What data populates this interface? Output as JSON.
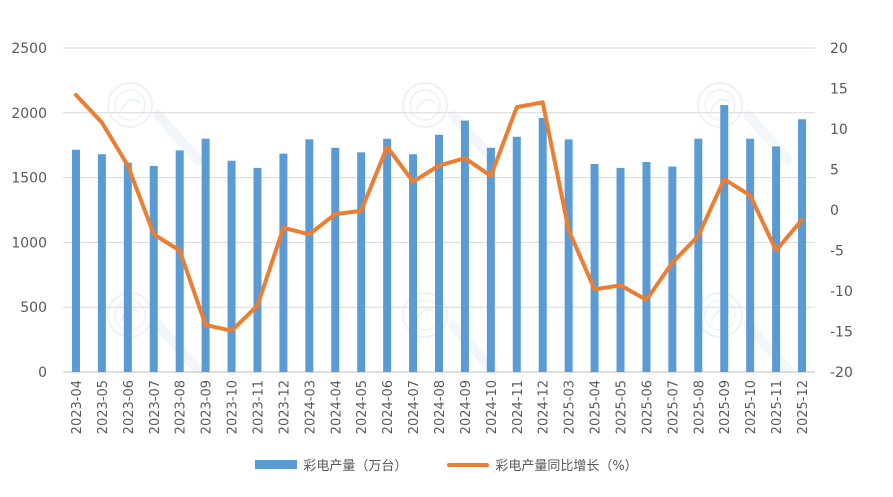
{
  "chart_data": {
    "type": "bar+line",
    "categories": [
      "2023-04",
      "2023-05",
      "2023-06",
      "2023-07",
      "2023-08",
      "2023-09",
      "2023-10",
      "2023-11",
      "2023-12",
      "2024-03",
      "2024-04",
      "2024-05",
      "2024-06",
      "2024-07",
      "2024-08",
      "2024-09",
      "2024-10",
      "2024-11",
      "2024-12",
      "2025-03",
      "2025-04",
      "2025-05",
      "2025-06",
      "2025-07",
      "2025-08",
      "2025-09",
      "2025-10",
      "2025-11",
      "2025-12"
    ],
    "series": [
      {
        "name": "彩电产量（万台）",
        "type": "bar",
        "axis": "left",
        "color": "#5b9bd5",
        "values": [
          1715,
          1680,
          1615,
          1590,
          1710,
          1800,
          1630,
          1575,
          1685,
          1795,
          1730,
          1695,
          1800,
          1680,
          1830,
          1940,
          1730,
          1815,
          1960,
          1795,
          1605,
          1575,
          1620,
          1585,
          1800,
          2060,
          1800,
          1740,
          1950
        ]
      },
      {
        "name": "彩电产量同比增长（%）",
        "type": "line",
        "axis": "right",
        "color": "#ed7d31",
        "values": [
          14.2,
          10.8,
          5.5,
          -3.0,
          -5.0,
          -14.2,
          -14.9,
          -11.8,
          -2.2,
          -3.0,
          -0.5,
          -0.1,
          7.8,
          3.5,
          5.5,
          6.4,
          4.2,
          12.7,
          13.3,
          -2.5,
          -9.8,
          -9.3,
          -11.1,
          -6.5,
          -3.2,
          3.8,
          1.8,
          -5.0,
          -1.2
        ]
      }
    ],
    "yleft": {
      "min": 0,
      "max": 2500,
      "ticks": [
        0,
        500,
        1000,
        1500,
        2000,
        2500
      ]
    },
    "yright": {
      "min": -20,
      "max": 20,
      "ticks": [
        -20,
        -15,
        -10,
        -5,
        0,
        5,
        10,
        15,
        20
      ]
    },
    "grid": true,
    "legend": "bottom-center"
  }
}
